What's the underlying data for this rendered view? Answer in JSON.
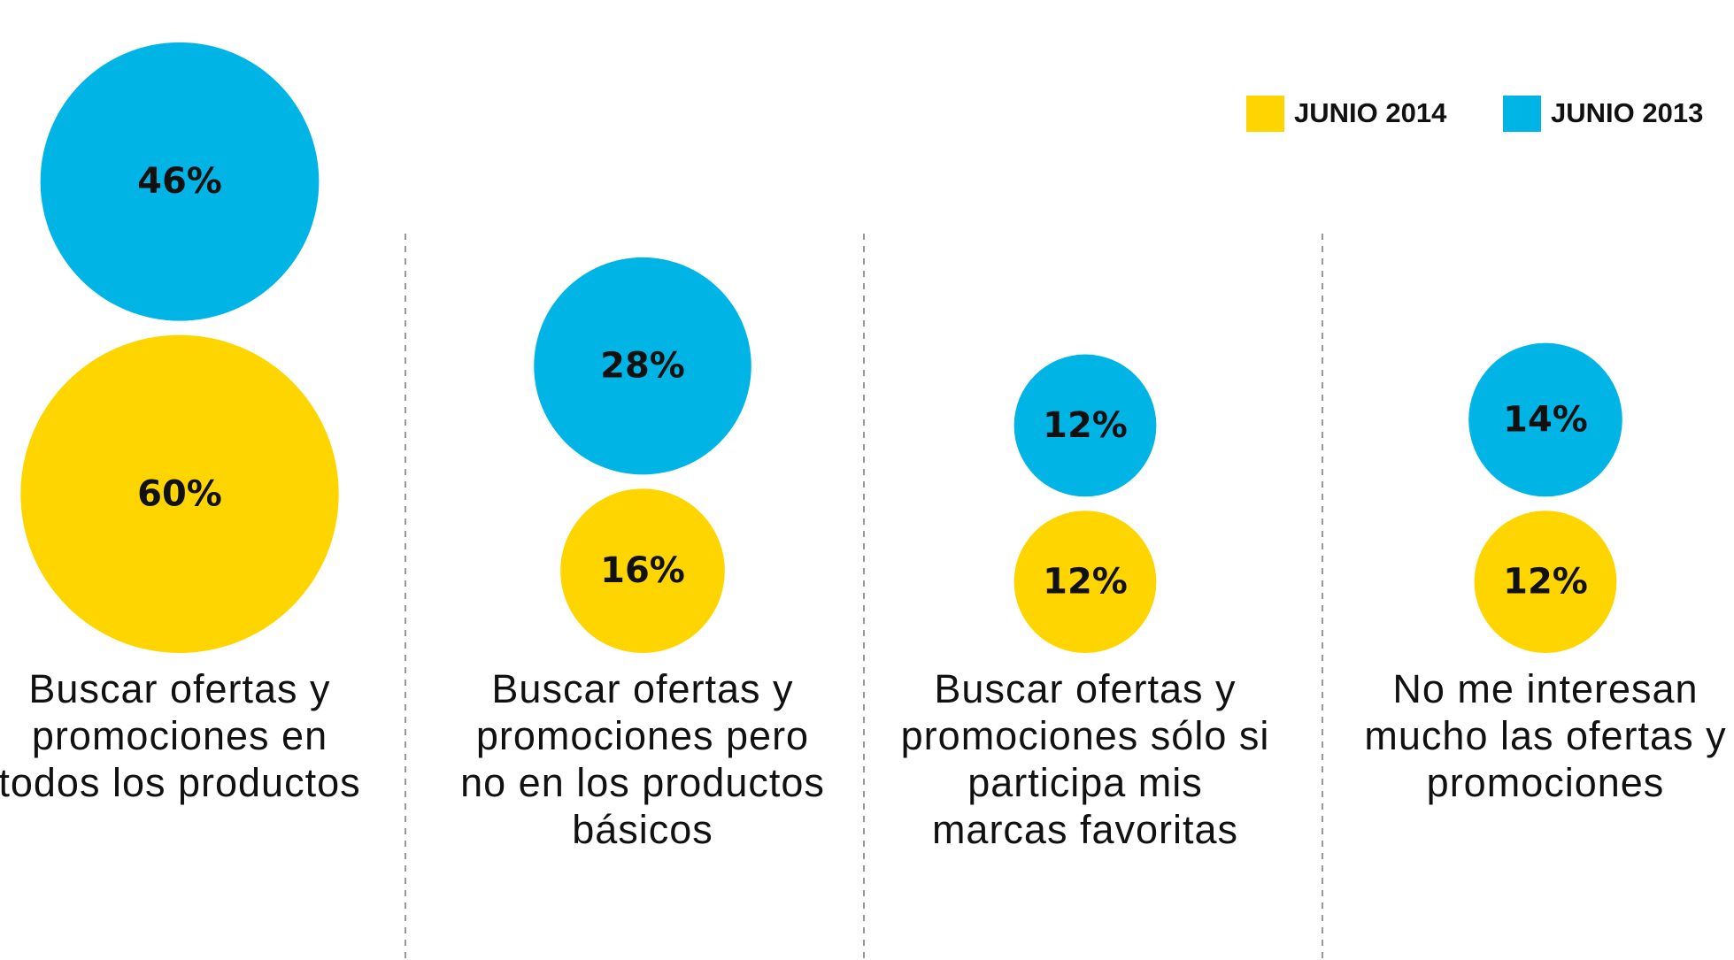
{
  "chart_data": {
    "type": "bubble",
    "categories": [
      "Buscar ofertas y promociones en todos los productos",
      "Buscar ofertas y promociones pero no en los productos básicos",
      "Buscar ofertas y promociones sólo si participa mis marcas favoritas",
      "No me interesan mucho las ofertas y promociones"
    ],
    "series": [
      {
        "name": "JUNIO 2014",
        "color": "#FFD500",
        "values": [
          60,
          16,
          12,
          12
        ],
        "value_labels": [
          "60%",
          "16%",
          "12%",
          "12%"
        ]
      },
      {
        "name": "JUNIO 2013",
        "color": "#00B5E6",
        "values": [
          46,
          28,
          12,
          14
        ],
        "value_labels": [
          "46%",
          "28%",
          "12%",
          "14%"
        ]
      }
    ],
    "legend": "upper right"
  }
}
